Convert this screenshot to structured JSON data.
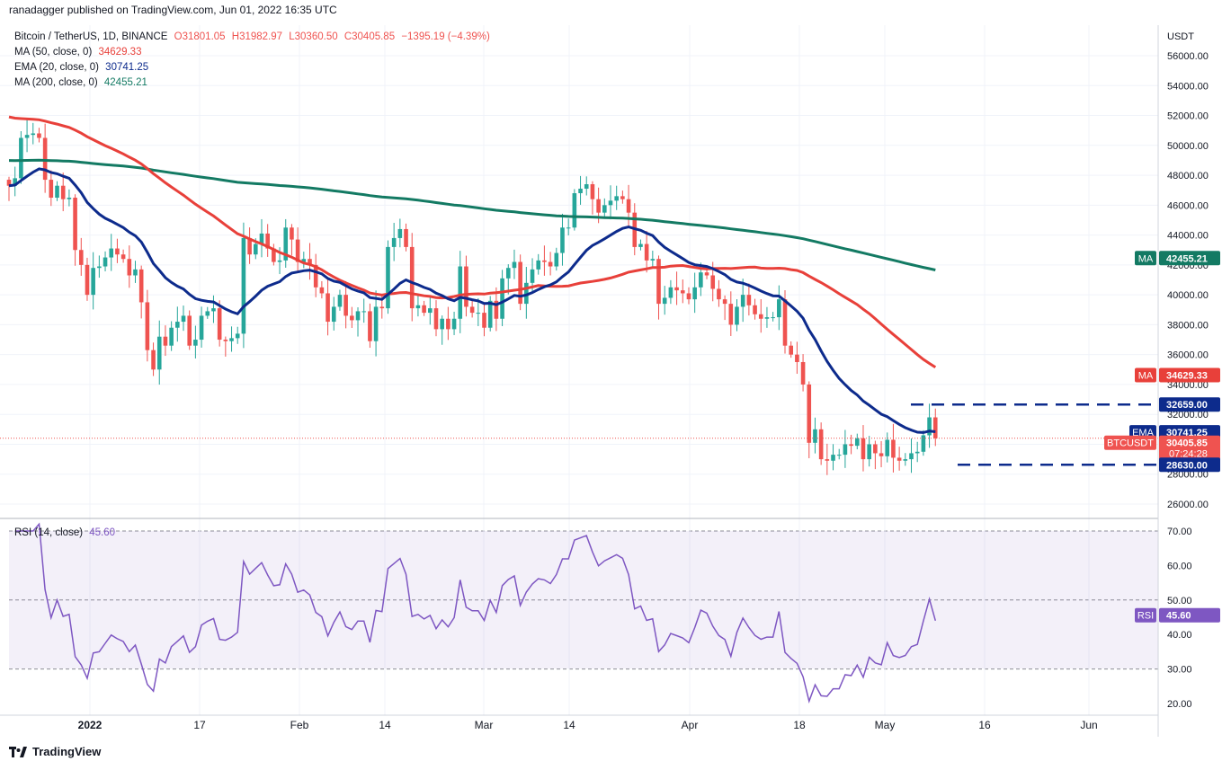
{
  "header": {
    "text": "ranadagger published on TradingView.com, Jun 01, 2022 16:35 UTC"
  },
  "legend": {
    "symbol": "Bitcoin / TetherUS, 1D, BINANCE",
    "ohlc": {
      "open": "O31801.05",
      "high": "H31982.97",
      "low": "L30360.50",
      "close": "C30405.85",
      "change": "−1395.19 (−4.39%)"
    },
    "ma50": {
      "label": "MA (50, close, 0)",
      "value": "34629.33"
    },
    "ema20": {
      "label": "EMA (20, close, 0)",
      "value": "30741.25"
    },
    "ma200": {
      "label": "MA (200, close, 0)",
      "value": "42455.21"
    },
    "rsi": {
      "label": "RSI (14, close)",
      "value": "45.60"
    }
  },
  "colors": {
    "up": "#26a69a",
    "down": "#ef5350",
    "ema": "#0d2b8c",
    "ma50": "#e8403a",
    "ma200": "#137a63",
    "rsi": "#7e57c2"
  },
  "chart_data": {
    "type": "candlestick",
    "symbol": "BTCUSDT",
    "currency": "USDT",
    "price_axis": {
      "ticks": [
        "56000.00",
        "54000.00",
        "52000.00",
        "50000.00",
        "48000.00",
        "46000.00",
        "44000.00",
        "42000.00",
        "40000.00",
        "38000.00",
        "36000.00",
        "34000.00",
        "32000.00",
        "30000.00",
        "28000.00",
        "26000.00"
      ],
      "ylim": [
        25000,
        57500
      ]
    },
    "rsi_axis": {
      "ticks": [
        "70.00",
        "60.00",
        "50.00",
        "40.00",
        "30.00",
        "20.00"
      ],
      "ylim": [
        17,
        72
      ]
    },
    "x_ticks": [
      "2022",
      "17",
      "Feb",
      "14",
      "Mar",
      "14",
      "Apr",
      "18",
      "May",
      "16",
      "Jun"
    ],
    "closes": [
      47300,
      47800,
      50500,
      50700,
      50800,
      50500,
      47700,
      46500,
      47300,
      46400,
      46500,
      43000,
      42000,
      40000,
      41800,
      41900,
      42500,
      43100,
      42700,
      42400,
      41300,
      41700,
      39500,
      36300,
      35000,
      37200,
      36600,
      37800,
      38200,
      38600,
      36600,
      37000,
      38600,
      38900,
      39100,
      37000,
      36900,
      37100,
      37400,
      43800,
      42700,
      43400,
      44100,
      43100,
      42200,
      42300,
      44500,
      43700,
      42200,
      42400,
      42000,
      40500,
      40100,
      38200,
      39200,
      40000,
      38600,
      38300,
      38900,
      38900,
      36900,
      39200,
      39100,
      43200,
      43800,
      44400,
      43200,
      39100,
      39300,
      38800,
      39100,
      37700,
      38400,
      37700,
      38400,
      41900,
      39200,
      38800,
      38800,
      37800,
      39600,
      38400,
      41100,
      41800,
      42200,
      39400,
      40800,
      41700,
      42300,
      42200,
      41900,
      42800,
      44500,
      44500,
      46800,
      47100,
      47400,
      46400,
      45500,
      46000,
      46300,
      46600,
      46400,
      45500,
      43200,
      43400,
      42300,
      42400,
      39400,
      39800,
      40500,
      40300,
      40100,
      39700,
      40500,
      41500,
      41300,
      40400,
      39700,
      39400,
      38000,
      39200,
      40000,
      39300,
      38700,
      38400,
      38500,
      38500,
      39700,
      36600,
      36000,
      35500,
      34000,
      30100,
      31000,
      29000,
      28900,
      29300,
      29300,
      30000,
      29900,
      30400,
      29000,
      30000,
      29400,
      29200,
      30300,
      29100,
      28900,
      29000,
      29400,
      29500,
      30600,
      31800,
      30400
    ],
    "last_price": "30405.85",
    "countdown": "07:24:28",
    "levels": [
      {
        "name": "resistance",
        "value": "32659.00"
      },
      {
        "name": "support",
        "value": "28630.00"
      }
    ],
    "series": [
      {
        "name": "EMA",
        "label": "EMA",
        "value": "30741.25"
      },
      {
        "name": "MA50",
        "label": "MA",
        "value": "34629.33"
      },
      {
        "name": "MA200",
        "label": "MA",
        "value": "42455.21"
      },
      {
        "name": "RSI",
        "label": "RSI",
        "value": "45.60"
      }
    ]
  },
  "footer": {
    "brand": "TradingView"
  }
}
